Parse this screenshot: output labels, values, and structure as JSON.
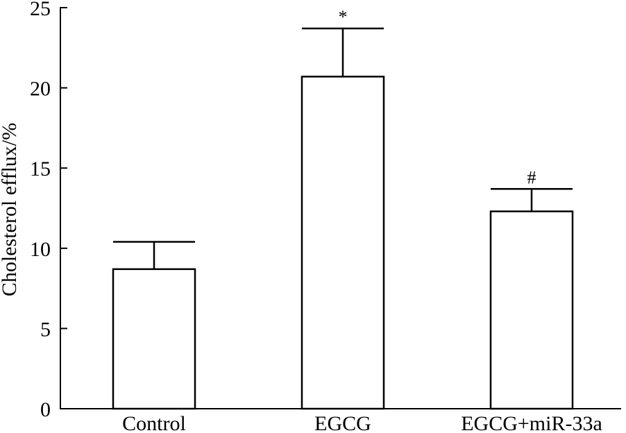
{
  "chart_data": {
    "type": "bar",
    "title": "",
    "xlabel": "",
    "ylabel": "Cholesterol efflux/%",
    "ylim": [
      0,
      25
    ],
    "yticks": [
      0,
      5,
      10,
      15,
      20,
      25
    ],
    "categories": [
      "Control",
      "EGCG",
      "EGCG+miR-33a"
    ],
    "values": [
      8.7,
      20.7,
      12.3
    ],
    "errors": [
      1.7,
      3.0,
      1.4
    ],
    "annotations": [
      "",
      "*",
      "#"
    ],
    "grid": false,
    "bar_fill": "#ffffff",
    "bar_stroke": "#000000"
  }
}
